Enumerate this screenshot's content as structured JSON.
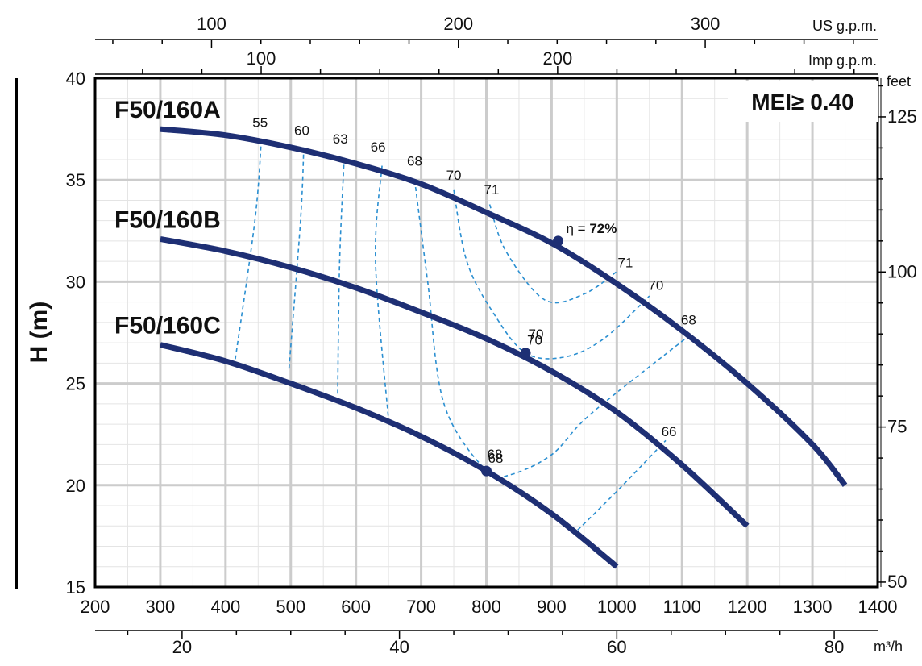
{
  "chart_data": {
    "type": "line",
    "title": "",
    "xlabel": "",
    "ylabel": "H (m)",
    "xlim": [
      200,
      1400
    ],
    "ylim": [
      15,
      40
    ],
    "grid": true,
    "x_ticks": [
      200,
      300,
      400,
      500,
      600,
      700,
      800,
      900,
      1000,
      1100,
      1200,
      1300,
      1400
    ],
    "y_ticks": [
      15,
      20,
      25,
      30,
      35,
      40
    ],
    "mei_text": "MEI≥ 0.40",
    "secondary_axes": {
      "us_gpm": {
        "label": "US g.p.m.",
        "ticks": [
          100,
          200,
          300
        ]
      },
      "imp_gpm": {
        "label": "Imp g.p.m.",
        "ticks": [
          100,
          200
        ]
      },
      "feet": {
        "label": "feet",
        "ticks": [
          50,
          75,
          100,
          125
        ]
      },
      "m3h": {
        "label": "m³/h",
        "ticks": [
          20,
          40,
          60,
          80
        ]
      }
    },
    "series": [
      {
        "name": "F50/160A",
        "x": [
          300,
          400,
          500,
          600,
          700,
          800,
          900,
          1000,
          1100,
          1200,
          1300,
          1350
        ],
        "y": [
          37.5,
          37.2,
          36.6,
          35.8,
          34.8,
          33.4,
          31.9,
          29.9,
          27.6,
          25.0,
          22.0,
          20.0
        ]
      },
      {
        "name": "F50/160B",
        "x": [
          300,
          400,
          500,
          600,
          700,
          800,
          900,
          1000,
          1100,
          1200
        ],
        "y": [
          32.1,
          31.5,
          30.7,
          29.7,
          28.5,
          27.2,
          25.6,
          23.6,
          21.0,
          18.0
        ]
      },
      {
        "name": "F50/160C",
        "x": [
          300,
          400,
          500,
          600,
          700,
          800,
          900,
          1000
        ],
        "y": [
          26.9,
          26.1,
          25.0,
          23.8,
          22.4,
          20.7,
          18.6,
          16.0
        ]
      }
    ],
    "bep_points": [
      {
        "x": 910,
        "y": 32.0,
        "label": "η = ",
        "label_value": "72%"
      },
      {
        "x": 860,
        "y": 26.5,
        "label": "70"
      },
      {
        "x": 800,
        "y": 20.7,
        "label": "68"
      }
    ],
    "efficiency_contours": [
      {
        "label": "55",
        "points": [
          [
            455,
            37.0
          ],
          [
            445,
            33.0
          ],
          [
            415,
            26.2
          ]
        ]
      },
      {
        "label": "60",
        "points": [
          [
            520,
            36.6
          ],
          [
            515,
            33.0
          ],
          [
            497,
            25.6
          ]
        ]
      },
      {
        "label": "63",
        "points": [
          [
            582,
            36.1
          ],
          [
            575,
            31.0
          ],
          [
            572,
            24.5
          ]
        ]
      },
      {
        "label": "66",
        "points": [
          [
            640,
            35.7
          ],
          [
            630,
            31.0
          ],
          [
            650,
            23.2
          ]
        ]
      },
      {
        "label": "68",
        "points": [
          [
            690,
            35.0
          ],
          [
            710,
            30.0
          ],
          [
            735,
            24.0
          ],
          [
            800,
            20.7
          ],
          [
            835,
            20.5
          ],
          [
            900,
            21.5
          ],
          [
            960,
            23.5
          ],
          [
            1105,
            27.2
          ]
        ]
      },
      {
        "label": "70",
        "points": [
          [
            750,
            34.5
          ],
          [
            770,
            31.0
          ],
          [
            810,
            28.5
          ],
          [
            860,
            26.5
          ],
          [
            920,
            26.3
          ],
          [
            980,
            27.2
          ],
          [
            1050,
            29.3
          ]
        ]
      },
      {
        "label": "71",
        "points": [
          [
            805,
            33.8
          ],
          [
            830,
            31.5
          ],
          [
            890,
            29.1
          ],
          [
            950,
            29.4
          ],
          [
            1000,
            30.5
          ]
        ]
      },
      {
        "label": "66",
        "points": [
          [
            940,
            17.8
          ],
          [
            1000,
            19.7
          ],
          [
            1075,
            22.2
          ]
        ]
      }
    ],
    "efficiency_labels": [
      {
        "text": "55",
        "x": 453,
        "y": 37.6
      },
      {
        "text": "60",
        "x": 517,
        "y": 37.2
      },
      {
        "text": "63",
        "x": 576,
        "y": 36.8
      },
      {
        "text": "66",
        "x": 634,
        "y": 36.4
      },
      {
        "text": "68",
        "x": 690,
        "y": 35.7
      },
      {
        "text": "70",
        "x": 750,
        "y": 35.0
      },
      {
        "text": "71",
        "x": 808,
        "y": 34.3
      },
      {
        "text": "71",
        "x": 1013,
        "y": 30.7
      },
      {
        "text": "70",
        "x": 1060,
        "y": 29.6
      },
      {
        "text": "68",
        "x": 1110,
        "y": 27.9
      },
      {
        "text": "70",
        "x": 876,
        "y": 27.2
      },
      {
        "text": "68",
        "x": 813,
        "y": 21.3
      },
      {
        "text": "66",
        "x": 1080,
        "y": 22.4
      }
    ]
  }
}
